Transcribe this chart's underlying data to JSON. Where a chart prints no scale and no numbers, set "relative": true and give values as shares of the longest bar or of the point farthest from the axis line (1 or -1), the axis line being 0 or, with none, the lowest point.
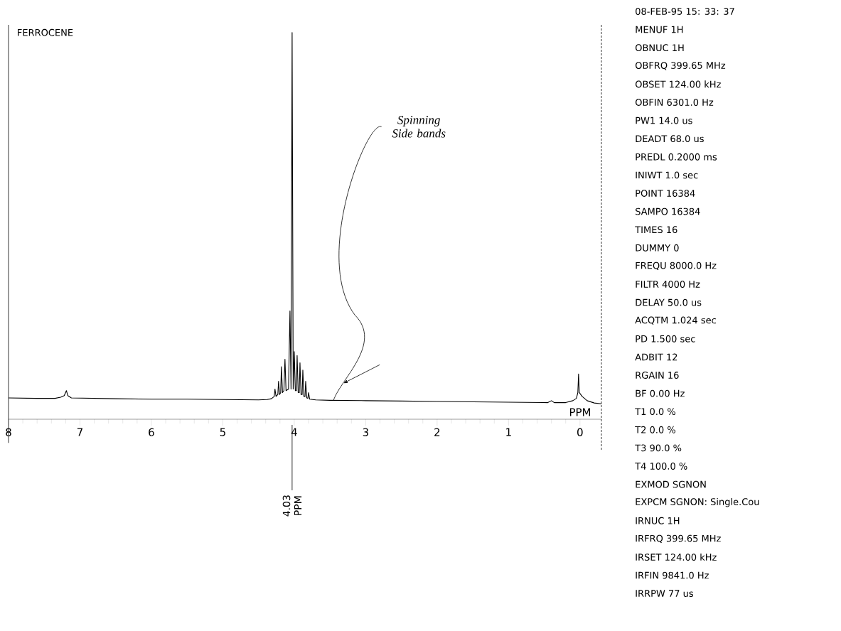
{
  "chart_data": {
    "type": "line",
    "title": "FERROCENE",
    "xlabel": "PPM",
    "relative": true,
    "color": "#000000",
    "marker": "none",
    "xlim": [
      8,
      -0.3
    ],
    "xticks": [
      0,
      1,
      2,
      3,
      4,
      5,
      6,
      7,
      8
    ],
    "x": [
      8.0,
      7.6,
      7.35,
      7.27,
      7.22,
      7.19,
      7.17,
      7.12,
      6.5,
      6.0,
      5.5,
      5.0,
      4.5,
      4.38,
      4.32,
      4.28,
      4.27,
      4.255,
      4.23,
      4.22,
      4.205,
      4.19,
      4.18,
      4.165,
      4.145,
      4.13,
      4.115,
      4.08,
      4.06,
      4.045,
      4.03,
      4.015,
      4.0,
      3.985,
      3.97,
      3.96,
      3.945,
      3.93,
      3.92,
      3.905,
      3.89,
      3.88,
      3.865,
      3.85,
      3.84,
      3.825,
      3.81,
      3.8,
      3.785,
      3.7,
      3.5,
      3.0,
      2.5,
      2.0,
      1.5,
      1.0,
      0.45,
      0.4,
      0.36,
      0.2,
      0.1,
      0.05,
      0.03,
      0.02,
      0.01,
      -0.03,
      -0.1,
      -0.2,
      -0.3
    ],
    "values": [
      0.055,
      0.054,
      0.054,
      0.057,
      0.061,
      0.074,
      0.061,
      0.055,
      0.053,
      0.052,
      0.052,
      0.051,
      0.05,
      0.051,
      0.053,
      0.059,
      0.078,
      0.059,
      0.064,
      0.098,
      0.064,
      0.069,
      0.136,
      0.069,
      0.074,
      0.155,
      0.074,
      0.078,
      0.28,
      0.078,
      1.0,
      0.078,
      0.175,
      0.074,
      0.074,
      0.165,
      0.069,
      0.069,
      0.146,
      0.064,
      0.064,
      0.127,
      0.059,
      0.059,
      0.098,
      0.055,
      0.054,
      0.069,
      0.052,
      0.05,
      0.049,
      0.048,
      0.047,
      0.046,
      0.045,
      0.044,
      0.043,
      0.048,
      0.043,
      0.043,
      0.048,
      0.054,
      0.069,
      0.117,
      0.069,
      0.059,
      0.048,
      0.042,
      0.04
    ],
    "annotations": [
      {
        "text": "4.03 PPM",
        "x": 4.03
      },
      {
        "text": "Spinning Side bands",
        "x": 3.45,
        "y": 0.049
      },
      "08-FEB-95 15: 33: 37",
      "MENUF 1H",
      "OBNUC 1H",
      "OBFRQ 399.65 MHz",
      "OBSET 124.00 kHz",
      "OBFIN 6301.0 Hz",
      "PW1 14.0 us",
      "DEADT 68.0 us",
      "PREDL 0.2000 ms",
      "INIWT 1.0 sec",
      "POINT 16384",
      "SAMPO 16384",
      "TIMES 16",
      "DUMMY 0",
      "FREQU 8000.0 Hz",
      "FILTR 4000 Hz",
      "DELAY 50.0 us",
      "ACQTM 1.024 sec",
      "PD 1.500 sec",
      "ADBIT 12",
      "RGAIN 16",
      "BF 0.00 Hz",
      "T1 0.0 %",
      "T2 0.0 %",
      "T3 90.0 %",
      "T4 100.0 %",
      "EXMOD SGNON",
      "EXPCM SGNON: Single.Cou",
      "IRNUC 1H",
      "IRFRQ 399.65 MHz",
      "IRSET 124.00 kHz",
      "IRFIN 9841.0 Hz",
      "IRRPW 77 us"
    ]
  }
}
